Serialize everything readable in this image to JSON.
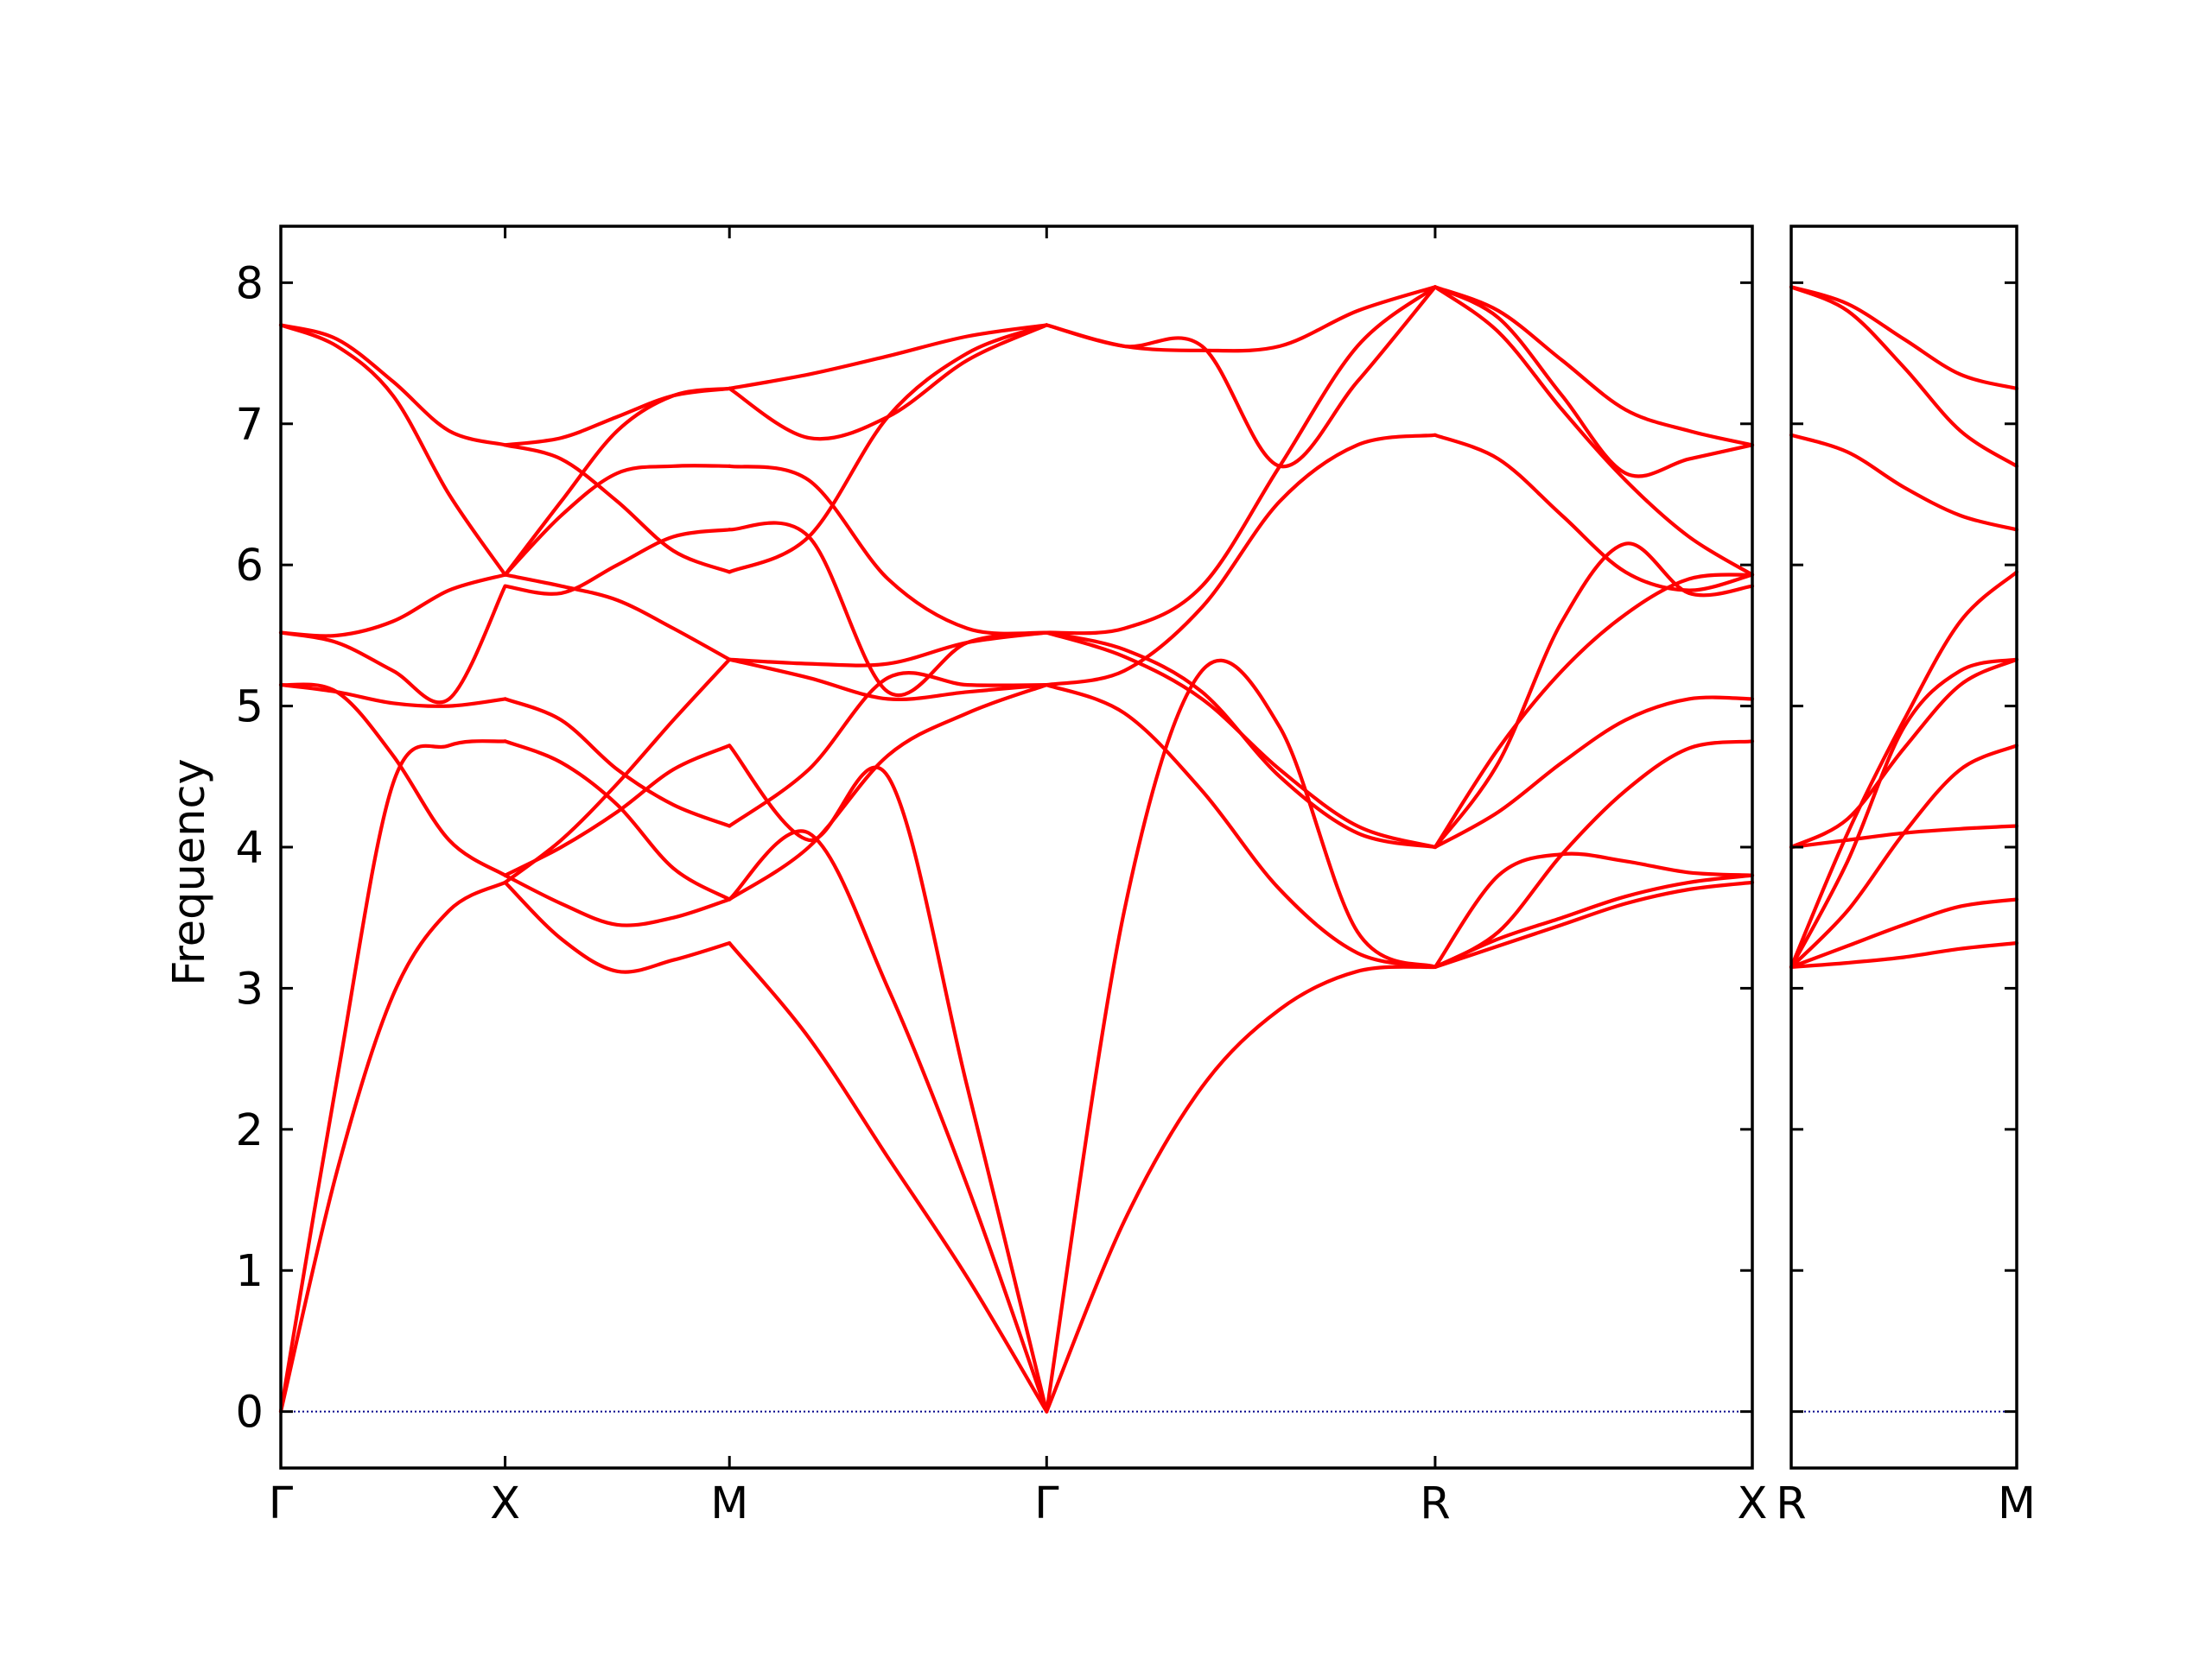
{
  "chart_data": {
    "type": "line",
    "title": "",
    "ylabel": "Frequency",
    "ylim": [
      -0.4,
      8.4
    ],
    "yticks": [
      0,
      1,
      2,
      3,
      4,
      5,
      6,
      7,
      8
    ],
    "grid": false,
    "legend": "none",
    "colors": {
      "band": "#ff0000",
      "zero_line": "#00008b",
      "axes": "#000000"
    },
    "panels": [
      {
        "name": "main",
        "xticks": [
          "Γ",
          "X",
          "M",
          "Γ",
          "R",
          "X"
        ],
        "x_path_positions": [
          0,
          1,
          2,
          3.414,
          5.146,
          6.56
        ],
        "segments": [
          {
            "from": "Γ",
            "to": "X",
            "x": [
              0,
              0.25,
              0.5,
              0.75,
              1
            ],
            "series": [
              {
                "values": [
                  0.0,
                  1.7,
                  2.95,
                  3.55,
                  3.75
                ]
              },
              {
                "values": [
                  0.0,
                  2.35,
                  4.45,
                  4.72,
                  4.75
                ]
              },
              {
                "values": [
                  5.15,
                  5.1,
                  4.65,
                  4.05,
                  3.8
                ]
              },
              {
                "values": [
                  5.15,
                  5.1,
                  5.02,
                  5.0,
                  5.05
                ]
              },
              {
                "values": [
                  5.52,
                  5.45,
                  5.25,
                  5.05,
                  5.85
                ]
              },
              {
                "values": [
                  5.52,
                  5.5,
                  5.6,
                  5.82,
                  5.93
                ]
              },
              {
                "values": [
                  7.7,
                  7.55,
                  7.2,
                  6.5,
                  5.93
                ]
              },
              {
                "values": [
                  7.7,
                  7.6,
                  7.3,
                  6.95,
                  6.85
                ]
              }
            ]
          },
          {
            "from": "X",
            "to": "M",
            "x": [
              0,
              0.25,
              0.5,
              0.75,
              1
            ],
            "series": [
              {
                "values": [
                  3.75,
                  3.35,
                  3.12,
                  3.2,
                  3.32
                ]
              },
              {
                "values": [
                  3.8,
                  3.6,
                  3.45,
                  3.5,
                  3.63
                ]
              },
              {
                "values": [
                  3.75,
                  4.05,
                  4.45,
                  4.9,
                  5.33
                ]
              },
              {
                "values": [
                  3.8,
                  4.0,
                  4.25,
                  4.55,
                  4.72
                ]
              },
              {
                "values": [
                  4.75,
                  4.6,
                  4.3,
                  3.85,
                  3.63
                ]
              },
              {
                "values": [
                  5.05,
                  4.9,
                  4.55,
                  4.3,
                  4.15
                ]
              },
              {
                "values": [
                  5.93,
                  5.85,
                  5.75,
                  5.55,
                  5.33
                ]
              },
              {
                "values": [
                  5.85,
                  5.8,
                  6.0,
                  6.2,
                  6.25
                ]
              },
              {
                "values": [
                  5.93,
                  6.35,
                  6.65,
                  6.7,
                  6.7
                ]
              },
              {
                "values": [
                  5.93,
                  6.45,
                  6.95,
                  7.2,
                  7.25
                ]
              },
              {
                "values": [
                  6.85,
                  6.75,
                  6.45,
                  6.1,
                  5.95
                ]
              },
              {
                "values": [
                  6.85,
                  6.9,
                  7.05,
                  7.2,
                  7.25
                ]
              }
            ]
          },
          {
            "from": "M",
            "to": "Γ",
            "x": [
              0,
              0.25,
              0.5,
              0.75,
              1
            ],
            "series": [
              {
                "values": [
                  3.32,
                  2.65,
                  1.8,
                  0.95,
                  0.0
                ]
              },
              {
                "values": [
                  3.63,
                  4.1,
                  3.0,
                  1.6,
                  0.0
                ]
              },
              {
                "values": [
                  4.72,
                  4.05,
                  4.5,
                  2.3,
                  0.0
                ]
              },
              {
                "values": [
                  3.63,
                  4.0,
                  4.65,
                  4.95,
                  5.15
                ]
              },
              {
                "values": [
                  4.15,
                  4.55,
                  5.2,
                  5.15,
                  5.15
                ]
              },
              {
                "values": [
                  5.33,
                  5.2,
                  5.05,
                  5.1,
                  5.15
                ]
              },
              {
                "values": [
                  5.33,
                  5.3,
                  5.3,
                  5.45,
                  5.52
                ]
              },
              {
                "values": [
                  6.25,
                  6.2,
                  5.1,
                  5.45,
                  5.52
                ]
              },
              {
                "values": [
                  6.7,
                  6.6,
                  5.9,
                  5.55,
                  5.52
                ]
              },
              {
                "values": [
                  5.95,
                  6.2,
                  7.05,
                  7.5,
                  7.7
                ]
              },
              {
                "values": [
                  7.25,
                  6.9,
                  7.05,
                  7.45,
                  7.7
                ]
              },
              {
                "values": [
                  7.25,
                  7.35,
                  7.48,
                  7.62,
                  7.7
                ]
              }
            ]
          },
          {
            "from": "Γ",
            "to": "R",
            "x": [
              0,
              0.2,
              0.4,
              0.6,
              0.8,
              1
            ],
            "series": [
              {
                "values": [
                  0.0,
                  1.35,
                  2.3,
                  2.85,
                  3.12,
                  3.15
                ]
              },
              {
                "values": [
                  0.0,
                  3.55,
                  5.25,
                  4.85,
                  3.4,
                  3.15
                ]
              },
              {
                "values": [
                  5.15,
                  4.95,
                  4.4,
                  3.7,
                  3.25,
                  3.15
                ]
              },
              {
                "values": [
                  5.15,
                  5.25,
                  5.7,
                  6.45,
                  6.85,
                  6.92
                ]
              },
              {
                "values": [
                  5.52,
                  5.35,
                  5.05,
                  4.55,
                  4.15,
                  4.0
                ]
              },
              {
                "values": [
                  5.52,
                  5.4,
                  5.1,
                  4.5,
                  4.1,
                  4.0
                ]
              },
              {
                "values": [
                  5.52,
                  5.55,
                  5.85,
                  6.7,
                  7.55,
                  7.97
                ]
              },
              {
                "values": [
                  7.7,
                  7.55,
                  7.55,
                  6.7,
                  7.3,
                  7.97
                ]
              },
              {
                "values": [
                  7.7,
                  7.55,
                  7.52,
                  7.55,
                  7.8,
                  7.97
                ]
              }
            ]
          },
          {
            "from": "R",
            "to": "X",
            "x": [
              0,
              0.2,
              0.4,
              0.6,
              0.8,
              1
            ],
            "series": [
              {
                "values": [
                  3.15,
                  3.3,
                  3.45,
                  3.6,
                  3.7,
                  3.75
                ]
              },
              {
                "values": [
                  3.15,
                  3.35,
                  3.5,
                  3.65,
                  3.75,
                  3.8
                ]
              },
              {
                "values": [
                  3.15,
                  3.8,
                  3.95,
                  3.9,
                  3.82,
                  3.8
                ]
              },
              {
                "values": [
                  3.15,
                  3.4,
                  3.95,
                  4.4,
                  4.7,
                  4.75
                ]
              },
              {
                "values": [
                  4.0,
                  4.25,
                  4.6,
                  4.9,
                  5.05,
                  5.05
                ]
              },
              {
                "values": [
                  4.0,
                  4.6,
                  5.6,
                  6.15,
                  5.8,
                  5.85
                ]
              },
              {
                "values": [
                  4.0,
                  4.7,
                  5.25,
                  5.65,
                  5.9,
                  5.93
                ]
              },
              {
                "values": [
                  6.92,
                  6.75,
                  6.35,
                  5.95,
                  5.82,
                  5.93
                ]
              },
              {
                "values": [
                  7.97,
                  7.65,
                  7.1,
                  6.6,
                  6.2,
                  5.93
                ]
              },
              {
                "values": [
                  7.97,
                  7.75,
                  7.2,
                  6.65,
                  6.75,
                  6.85
                ]
              },
              {
                "values": [
                  7.97,
                  7.8,
                  7.45,
                  7.1,
                  6.95,
                  6.85
                ]
              }
            ]
          }
        ]
      },
      {
        "name": "right",
        "xticks": [
          "R",
          "M"
        ],
        "x_path_positions": [
          0,
          1
        ],
        "segments": [
          {
            "from": "R",
            "to": "M",
            "x": [
              0,
              0.25,
              0.5,
              0.75,
              1
            ],
            "series": [
              {
                "values": [
                  3.15,
                  3.18,
                  3.22,
                  3.28,
                  3.32
                ]
              },
              {
                "values": [
                  3.15,
                  3.3,
                  3.45,
                  3.58,
                  3.63
                ]
              },
              {
                "values": [
                  3.15,
                  3.55,
                  4.1,
                  4.55,
                  4.72
                ]
              },
              {
                "values": [
                  3.15,
                  3.9,
                  4.85,
                  5.25,
                  5.33
                ]
              },
              {
                "values": [
                  3.15,
                  4.1,
                  4.9,
                  5.6,
                  5.95
                ]
              },
              {
                "values": [
                  4.0,
                  4.05,
                  4.1,
                  4.13,
                  4.15
                ]
              },
              {
                "values": [
                  4.0,
                  4.2,
                  4.7,
                  5.15,
                  5.33
                ]
              },
              {
                "values": [
                  6.92,
                  6.8,
                  6.55,
                  6.35,
                  6.25
                ]
              },
              {
                "values": [
                  7.97,
                  7.8,
                  7.4,
                  6.95,
                  6.7
                ]
              },
              {
                "values": [
                  7.97,
                  7.85,
                  7.6,
                  7.35,
                  7.25
                ]
              }
            ]
          }
        ]
      }
    ]
  }
}
